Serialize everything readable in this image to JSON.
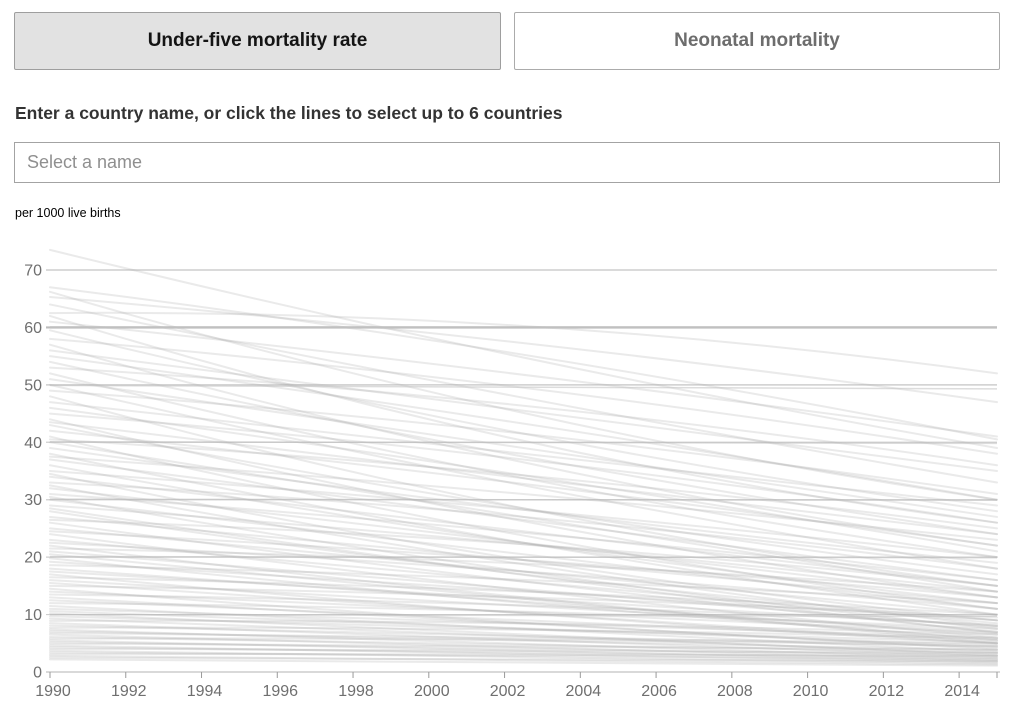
{
  "tabs": [
    {
      "label": "Under-five mortality rate",
      "active": true
    },
    {
      "label": "Neonatal mortality",
      "active": false
    }
  ],
  "prompt": "Enter a country name, or click the lines to select up to 6 countries",
  "search": {
    "placeholder": "Select a name",
    "value": ""
  },
  "unit_label": "per 1000 live births",
  "colors": {
    "active_tab_bg": "#e2e2e2",
    "tab_border": "#9e9e9e",
    "inactive_tab_text": "#6d6d6d",
    "gridline": "#cecece",
    "gridline_dark": "#bdbdbd",
    "axis_line": "#c2c2c2",
    "tick": "#9a9a9a",
    "axis_label": "#6f6f6f",
    "country_line": "#aaaaaa",
    "country_line_opacity": 0.25,
    "flat_line": "#c0c0c0"
  },
  "chart_data": {
    "type": "line",
    "title": "",
    "ylabel": "per 1000 live births",
    "xlabel": "",
    "x_range": [
      1990,
      2015
    ],
    "ylim": [
      0,
      70
    ],
    "yticks": [
      0,
      10,
      20,
      30,
      40,
      50,
      60,
      70
    ],
    "xticks": [
      1990,
      1992,
      1994,
      1996,
      1998,
      2000,
      2002,
      2004,
      2006,
      2008,
      2010,
      2012,
      2014
    ],
    "end_tick_year": 2015,
    "grid": true,
    "legend": "none",
    "series_note": "~100 unselected country trajectories of under-five mortality per 1000 live births, 1990-2015, drawn light gray; each entry is [value_1990, value_2015, mid_bow]",
    "background_lines": [
      [
        73.5,
        39,
        -2
      ],
      [
        67,
        40.5,
        2
      ],
      [
        66.2,
        30,
        -4
      ],
      [
        65.3,
        47,
        1.5
      ],
      [
        64,
        33,
        -1
      ],
      [
        62.5,
        52,
        4
      ],
      [
        62,
        26,
        -5
      ],
      [
        61,
        41,
        1
      ],
      [
        59.5,
        28,
        -3
      ],
      [
        58,
        38,
        2
      ],
      [
        57,
        22,
        -4
      ],
      [
        56,
        35,
        0
      ],
      [
        55,
        30,
        1
      ],
      [
        54,
        24,
        -2
      ],
      [
        53,
        36,
        2.5
      ],
      [
        52,
        20,
        -3
      ],
      [
        51,
        27,
        0
      ],
      [
        50,
        18,
        -2
      ],
      [
        49,
        31,
        2
      ],
      [
        48,
        15,
        -4
      ],
      [
        47,
        29,
        0
      ],
      [
        46,
        21,
        1
      ],
      [
        45,
        26,
        2
      ],
      [
        44,
        13,
        -3
      ],
      [
        43.5,
        24,
        0
      ],
      [
        43,
        17,
        -2
      ],
      [
        42,
        22,
        1
      ],
      [
        41,
        11,
        -3
      ],
      [
        40.5,
        25,
        2
      ],
      [
        40,
        14,
        0
      ],
      [
        39,
        19,
        -1
      ],
      [
        38,
        10,
        -2
      ],
      [
        37.5,
        23,
        1
      ],
      [
        37,
        16,
        0
      ],
      [
        36,
        12,
        -2
      ],
      [
        35,
        20,
        1
      ],
      [
        34.5,
        9,
        -3
      ],
      [
        34,
        15,
        0
      ],
      [
        33,
        18,
        2
      ],
      [
        32.5,
        8,
        -2
      ],
      [
        32,
        13,
        0
      ],
      [
        31,
        16,
        1
      ],
      [
        30.5,
        7.5,
        -2
      ],
      [
        30,
        11,
        0
      ],
      [
        29,
        14,
        1
      ],
      [
        28.5,
        6.8,
        -1
      ],
      [
        28,
        9,
        -2
      ],
      [
        27,
        12,
        0
      ],
      [
        26.5,
        15,
        2
      ],
      [
        26,
        7,
        -1
      ],
      [
        25,
        10,
        0
      ],
      [
        24.5,
        13,
        1
      ],
      [
        24,
        6,
        -1
      ],
      [
        23,
        8.5,
        0
      ],
      [
        22.5,
        11,
        1
      ],
      [
        22,
        5.5,
        -1
      ],
      [
        21.5,
        14,
        1.5
      ],
      [
        21,
        7.8,
        0
      ],
      [
        20.5,
        5,
        -0.5
      ],
      [
        19.8,
        5.8,
        -1
      ],
      [
        19.2,
        9,
        0
      ],
      [
        18.6,
        12,
        1
      ],
      [
        18,
        6.5,
        0
      ],
      [
        17.5,
        8,
        0
      ],
      [
        17,
        4.9,
        -1
      ],
      [
        16.5,
        10,
        1
      ],
      [
        16,
        7,
        0
      ],
      [
        15.5,
        5,
        0
      ],
      [
        15,
        9.5,
        1
      ],
      [
        14.5,
        4.2,
        -1
      ],
      [
        14,
        6.8,
        0
      ],
      [
        13.5,
        8.2,
        1
      ],
      [
        13,
        3.9,
        0
      ],
      [
        12.5,
        5.5,
        0
      ],
      [
        12,
        7.5,
        1
      ],
      [
        11.5,
        3.5,
        0
      ],
      [
        11,
        6,
        0
      ],
      [
        10.6,
        4.6,
        0
      ],
      [
        10.2,
        2.9,
        -0.5
      ],
      [
        9.7,
        5.2,
        0
      ],
      [
        9.3,
        3.2,
        0
      ],
      [
        8.9,
        6.5,
        1
      ],
      [
        8.5,
        2.7,
        0
      ],
      [
        8.1,
        4.4,
        0
      ],
      [
        7.7,
        5.8,
        0.8
      ],
      [
        7.4,
        2.4,
        0
      ],
      [
        7.1,
        3.8,
        0
      ],
      [
        6.8,
        5,
        0.5
      ],
      [
        6.5,
        2.1,
        0
      ],
      [
        6.1,
        3.4,
        0
      ],
      [
        5.8,
        4.5,
        0.6
      ],
      [
        5.5,
        1.9,
        0
      ],
      [
        5.2,
        2.9,
        0
      ],
      [
        4.9,
        3.9,
        0.4
      ],
      [
        4.6,
        1.7,
        0
      ],
      [
        4.3,
        2.5,
        0
      ],
      [
        4,
        3.3,
        0.3
      ],
      [
        3.7,
        1.5,
        0
      ],
      [
        3.4,
        2.2,
        0
      ],
      [
        3.1,
        2.8,
        0.2
      ],
      [
        2.8,
        1.3,
        0
      ],
      [
        2.5,
        1.9,
        0
      ],
      [
        2.2,
        1.1,
        0
      ]
    ],
    "highlight_flat_lines": [
      [
        60,
        60
      ],
      [
        49.9,
        49.3
      ],
      [
        40.1,
        39.8
      ],
      [
        30.1,
        29.9
      ],
      [
        20.1,
        19.9
      ],
      [
        10,
        9.7
      ]
    ]
  }
}
